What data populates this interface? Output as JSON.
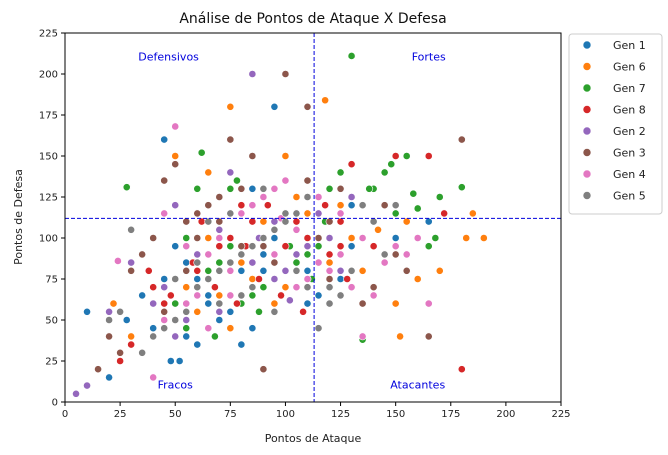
{
  "chart_data": {
    "type": "scatter",
    "title": "Análise de Pontos de Ataque X Defesa",
    "xlabel": "Pontos de Ataque",
    "ylabel": "Pontos de Defesa",
    "xlim": [
      0,
      225
    ],
    "ylim": [
      0,
      225
    ],
    "xticks": [
      0,
      25,
      50,
      75,
      100,
      125,
      150,
      175,
      200,
      225
    ],
    "yticks": [
      0,
      25,
      50,
      75,
      100,
      125,
      150,
      175,
      200,
      225
    ],
    "grid": false,
    "legend_position": "outside-right-top",
    "reference_lines": {
      "x": 113,
      "y": 112,
      "color": "#0000dd",
      "style": "dashed"
    },
    "quadrant_labels": [
      {
        "text": "Defensivos",
        "x": 47,
        "y": 210
      },
      {
        "text": "Fortes",
        "x": 165,
        "y": 210
      },
      {
        "text": "Fracos",
        "x": 50,
        "y": 10
      },
      {
        "text": "Atacantes",
        "x": 160,
        "y": 10
      }
    ],
    "quadrant_label_color": "#0000dd",
    "series": [
      {
        "name": "Gen 1",
        "color": "#1f77b4",
        "points": [
          [
            10,
            55
          ],
          [
            20,
            15
          ],
          [
            35,
            65
          ],
          [
            40,
            100
          ],
          [
            45,
            160
          ],
          [
            55,
            40
          ],
          [
            60,
            35
          ],
          [
            65,
            60
          ],
          [
            70,
            100
          ],
          [
            75,
            55
          ],
          [
            80,
            80
          ],
          [
            85,
            45
          ],
          [
            90,
            80
          ],
          [
            95,
            180
          ],
          [
            100,
            95
          ],
          [
            105,
            85
          ],
          [
            110,
            60
          ],
          [
            115,
            65
          ],
          [
            120,
            110
          ],
          [
            125,
            75
          ],
          [
            130,
            120
          ],
          [
            130,
            95
          ],
          [
            150,
            100
          ],
          [
            165,
            110
          ],
          [
            85,
            130
          ],
          [
            95,
            100
          ],
          [
            60,
            75
          ],
          [
            70,
            50
          ],
          [
            80,
            35
          ],
          [
            45,
            75
          ],
          [
            50,
            95
          ],
          [
            55,
            85
          ],
          [
            65,
            65
          ],
          [
            90,
            90
          ],
          [
            110,
            80
          ],
          [
            40,
            45
          ],
          [
            28,
            50
          ],
          [
            48,
            25
          ],
          [
            52,
            25
          ],
          [
            135,
            80
          ]
        ]
      },
      {
        "name": "Gen 6",
        "color": "#ff7f0e",
        "points": [
          [
            22,
            60
          ],
          [
            30,
            40
          ],
          [
            50,
            150
          ],
          [
            55,
            110
          ],
          [
            65,
            140
          ],
          [
            75,
            180
          ],
          [
            85,
            75
          ],
          [
            90,
            95
          ],
          [
            100,
            150
          ],
          [
            105,
            125
          ],
          [
            110,
            115
          ],
          [
            118,
            184
          ],
          [
            125,
            120
          ],
          [
            130,
            100
          ],
          [
            135,
            80
          ],
          [
            140,
            65
          ],
          [
            145,
            90
          ],
          [
            150,
            60
          ],
          [
            152,
            40
          ],
          [
            155,
            110
          ],
          [
            160,
            75
          ],
          [
            165,
            95
          ],
          [
            170,
            80
          ],
          [
            180,
            160
          ],
          [
            182,
            100
          ],
          [
            185,
            115
          ],
          [
            190,
            100
          ],
          [
            100,
            70
          ],
          [
            90,
            110
          ],
          [
            60,
            55
          ],
          [
            70,
            65
          ],
          [
            80,
            85
          ],
          [
            95,
            60
          ],
          [
            75,
            45
          ],
          [
            55,
            70
          ],
          [
            65,
            100
          ],
          [
            110,
            95
          ],
          [
            120,
            85
          ],
          [
            130,
            70
          ],
          [
            142,
            105
          ]
        ]
      },
      {
        "name": "Gen 7",
        "color": "#2ca02c",
        "points": [
          [
            28,
            131
          ],
          [
            50,
            60
          ],
          [
            55,
            100
          ],
          [
            60,
            130
          ],
          [
            62,
            152
          ],
          [
            65,
            80
          ],
          [
            70,
            85
          ],
          [
            75,
            95
          ],
          [
            80,
            60
          ],
          [
            85,
            65
          ],
          [
            90,
            70
          ],
          [
            95,
            75
          ],
          [
            100,
            80
          ],
          [
            105,
            85
          ],
          [
            110,
            90
          ],
          [
            115,
            95
          ],
          [
            120,
            130
          ],
          [
            125,
            140
          ],
          [
            130,
            211
          ],
          [
            135,
            38
          ],
          [
            140,
            130
          ],
          [
            145,
            140
          ],
          [
            150,
            115
          ],
          [
            155,
            150
          ],
          [
            158,
            127
          ],
          [
            165,
            95
          ],
          [
            170,
            125
          ],
          [
            180,
            131
          ],
          [
            75,
            130
          ],
          [
            78,
            135
          ],
          [
            102,
            95
          ],
          [
            112,
            75
          ],
          [
            55,
            45
          ],
          [
            68,
            40
          ],
          [
            88,
            55
          ],
          [
            118,
            110
          ],
          [
            138,
            130
          ],
          [
            148,
            145
          ],
          [
            160,
            118
          ],
          [
            168,
            100
          ]
        ]
      },
      {
        "name": "Gen 8",
        "color": "#d62728",
        "points": [
          [
            25,
            25
          ],
          [
            30,
            35
          ],
          [
            38,
            80
          ],
          [
            40,
            70
          ],
          [
            45,
            60
          ],
          [
            50,
            50
          ],
          [
            55,
            55
          ],
          [
            60,
            80
          ],
          [
            65,
            90
          ],
          [
            70,
            95
          ],
          [
            75,
            100
          ],
          [
            80,
            120
          ],
          [
            85,
            110
          ],
          [
            90,
            100
          ],
          [
            95,
            105
          ],
          [
            100,
            95
          ],
          [
            105,
            110
          ],
          [
            110,
            100
          ],
          [
            115,
            85
          ],
          [
            120,
            90
          ],
          [
            125,
            95
          ],
          [
            130,
            145
          ],
          [
            140,
            95
          ],
          [
            150,
            150
          ],
          [
            165,
            150
          ],
          [
            172,
            115
          ],
          [
            180,
            20
          ],
          [
            118,
            120
          ],
          [
            125,
            110
          ],
          [
            88,
            75
          ],
          [
            78,
            60
          ],
          [
            68,
            70
          ],
          [
            58,
            85
          ],
          [
            48,
            65
          ],
          [
            98,
            65
          ],
          [
            108,
            55
          ],
          [
            128,
            75
          ],
          [
            92,
            120
          ],
          [
            82,
            95
          ],
          [
            62,
            110
          ]
        ]
      },
      {
        "name": "Gen 2",
        "color": "#9467bd",
        "points": [
          [
            5,
            5
          ],
          [
            10,
            10
          ],
          [
            20,
            55
          ],
          [
            30,
            85
          ],
          [
            45,
            70
          ],
          [
            50,
            120
          ],
          [
            60,
            65
          ],
          [
            65,
            75
          ],
          [
            70,
            105
          ],
          [
            75,
            140
          ],
          [
            80,
            115
          ],
          [
            85,
            200
          ],
          [
            90,
            130
          ],
          [
            95,
            110
          ],
          [
            100,
            80
          ],
          [
            105,
            90
          ],
          [
            110,
            95
          ],
          [
            115,
            115
          ],
          [
            120,
            100
          ],
          [
            125,
            80
          ],
          [
            130,
            125
          ],
          [
            55,
            50
          ],
          [
            40,
            60
          ],
          [
            85,
            85
          ],
          [
            95,
            75
          ],
          [
            70,
            55
          ],
          [
            60,
            90
          ],
          [
            50,
            40
          ],
          [
            102,
            62
          ],
          [
            88,
            100
          ]
        ]
      },
      {
        "name": "Gen 3",
        "color": "#8c564b",
        "points": [
          [
            15,
            20
          ],
          [
            20,
            40
          ],
          [
            25,
            30
          ],
          [
            30,
            80
          ],
          [
            35,
            90
          ],
          [
            40,
            100
          ],
          [
            45,
            135
          ],
          [
            50,
            145
          ],
          [
            55,
            110
          ],
          [
            60,
            115
          ],
          [
            65,
            120
          ],
          [
            70,
            125
          ],
          [
            75,
            160
          ],
          [
            80,
            130
          ],
          [
            85,
            150
          ],
          [
            90,
            20
          ],
          [
            95,
            85
          ],
          [
            100,
            200
          ],
          [
            105,
            115
          ],
          [
            110,
            180
          ],
          [
            115,
            100
          ],
          [
            120,
            75
          ],
          [
            125,
            130
          ],
          [
            135,
            60
          ],
          [
            145,
            120
          ],
          [
            150,
            90
          ],
          [
            155,
            80
          ],
          [
            165,
            40
          ],
          [
            180,
            160
          ],
          [
            100,
            110
          ],
          [
            90,
            95
          ],
          [
            75,
            85
          ],
          [
            60,
            100
          ],
          [
            45,
            55
          ],
          [
            80,
            95
          ],
          [
            110,
            135
          ],
          [
            120,
            110
          ],
          [
            140,
            70
          ],
          [
            70,
            110
          ],
          [
            55,
            80
          ]
        ]
      },
      {
        "name": "Gen 4",
        "color": "#e377c2",
        "points": [
          [
            24,
            86
          ],
          [
            40,
            15
          ],
          [
            45,
            50
          ],
          [
            50,
            168
          ],
          [
            55,
            60
          ],
          [
            60,
            65
          ],
          [
            65,
            90
          ],
          [
            70,
            100
          ],
          [
            75,
            80
          ],
          [
            80,
            115
          ],
          [
            85,
            120
          ],
          [
            90,
            125
          ],
          [
            95,
            130
          ],
          [
            100,
            135
          ],
          [
            105,
            70
          ],
          [
            110,
            75
          ],
          [
            115,
            85
          ],
          [
            120,
            80
          ],
          [
            125,
            90
          ],
          [
            130,
            70
          ],
          [
            135,
            40
          ],
          [
            140,
            65
          ],
          [
            145,
            85
          ],
          [
            150,
            95
          ],
          [
            155,
            90
          ],
          [
            160,
            100
          ],
          [
            165,
            60
          ],
          [
            45,
            115
          ],
          [
            85,
            95
          ],
          [
            95,
            90
          ],
          [
            75,
            65
          ],
          [
            65,
            45
          ],
          [
            105,
            105
          ],
          [
            125,
            115
          ],
          [
            135,
            100
          ],
          [
            55,
            95
          ],
          [
            115,
            125
          ],
          [
            98,
            112
          ]
        ]
      },
      {
        "name": "Gen 5",
        "color": "#7f7f7f",
        "points": [
          [
            20,
            50
          ],
          [
            25,
            55
          ],
          [
            30,
            105
          ],
          [
            35,
            30
          ],
          [
            40,
            40
          ],
          [
            45,
            45
          ],
          [
            50,
            50
          ],
          [
            55,
            55
          ],
          [
            60,
            70
          ],
          [
            65,
            75
          ],
          [
            70,
            80
          ],
          [
            75,
            85
          ],
          [
            80,
            90
          ],
          [
            85,
            95
          ],
          [
            90,
            100
          ],
          [
            95,
            105
          ],
          [
            100,
            110
          ],
          [
            105,
            115
          ],
          [
            110,
            125
          ],
          [
            115,
            45
          ],
          [
            120,
            60
          ],
          [
            125,
            65
          ],
          [
            130,
            80
          ],
          [
            135,
            120
          ],
          [
            140,
            110
          ],
          [
            145,
            90
          ],
          [
            150,
            120
          ],
          [
            90,
            130
          ],
          [
            100,
            115
          ],
          [
            110,
            70
          ],
          [
            80,
            65
          ],
          [
            70,
            60
          ],
          [
            60,
            85
          ],
          [
            50,
            75
          ],
          [
            95,
            55
          ],
          [
            105,
            80
          ],
          [
            120,
            70
          ],
          [
            65,
            110
          ],
          [
            75,
            115
          ],
          [
            85,
            70
          ]
        ]
      }
    ]
  }
}
